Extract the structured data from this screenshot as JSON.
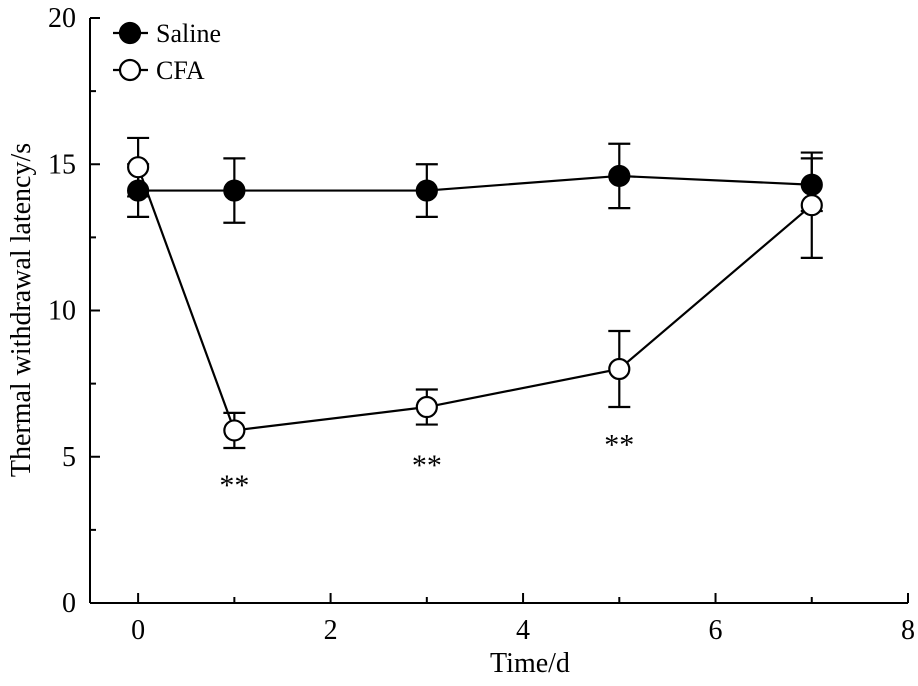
{
  "chart_data": {
    "type": "line",
    "title": "",
    "xlabel": "Time/d",
    "ylabel": "Thermal withdrawal latency/s",
    "xlim": [
      -0.5,
      8
    ],
    "ylim": [
      0,
      20
    ],
    "x_ticks": [
      0,
      2,
      4,
      6,
      8
    ],
    "y_ticks": [
      0,
      5,
      10,
      15,
      20
    ],
    "x_tick_labels": [
      "0",
      "2",
      "4",
      "6",
      "8"
    ],
    "y_tick_labels": [
      "0",
      "5",
      "10",
      "15",
      "20"
    ],
    "grid": false,
    "legend_position": "top-left",
    "series": [
      {
        "name": "Saline",
        "marker": "filled-circle",
        "x": [
          0,
          1,
          3,
          5,
          7
        ],
        "y": [
          14.1,
          14.1,
          14.1,
          14.6,
          14.3
        ],
        "err": [
          0.9,
          1.1,
          0.9,
          1.1,
          0.9
        ]
      },
      {
        "name": "CFA",
        "marker": "open-circle",
        "x": [
          0,
          1,
          3,
          5,
          7
        ],
        "y": [
          14.9,
          5.9,
          6.7,
          8.0,
          13.6
        ],
        "err": [
          1.0,
          0.6,
          0.6,
          1.3,
          1.8
        ]
      }
    ],
    "annotations": [
      {
        "text": "**",
        "x": 1,
        "y": 4.3
      },
      {
        "text": "**",
        "x": 3,
        "y": 5.0
      },
      {
        "text": "**",
        "x": 5,
        "y": 5.7
      }
    ]
  }
}
